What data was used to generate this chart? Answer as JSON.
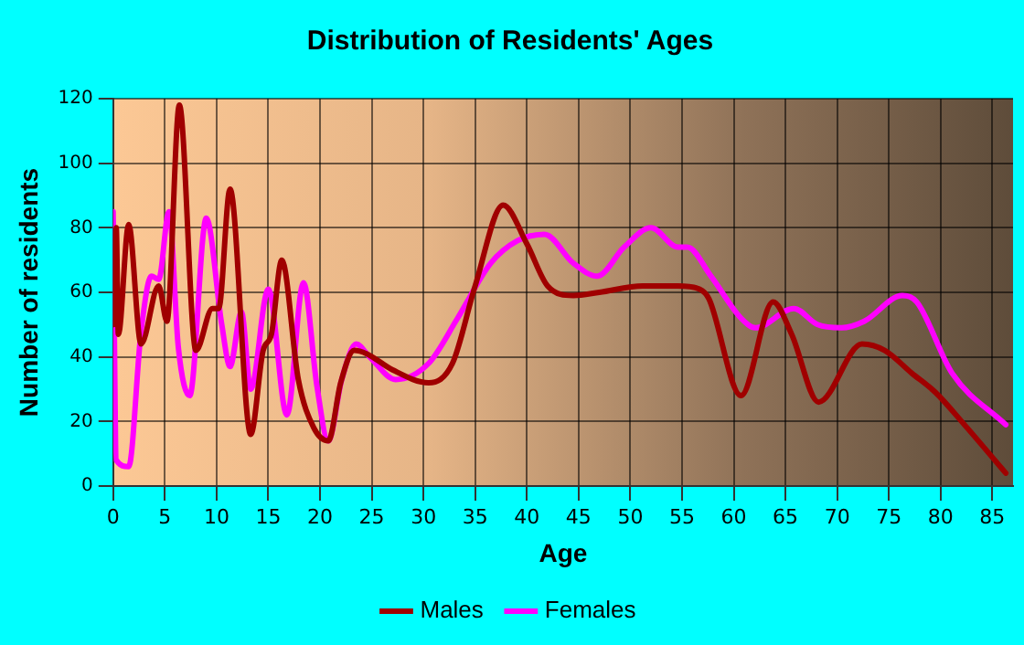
{
  "chart_data": {
    "type": "line",
    "title": "Distribution of Residents' Ages",
    "xlabel": "Age",
    "ylabel": "Number of residents",
    "xlim": [
      0,
      87
    ],
    "xticks": [
      0,
      5,
      10,
      15,
      20,
      25,
      30,
      35,
      40,
      45,
      50,
      55,
      60,
      65,
      70,
      75,
      80,
      85
    ],
    "ylim": [
      0,
      120
    ],
    "yticks": [
      0,
      20,
      40,
      60,
      80,
      100,
      120
    ],
    "grid": true,
    "legend": "bottom",
    "marker": "none",
    "line_style": "solid",
    "series": [
      {
        "name": "Males",
        "color": "#a00000",
        "x": [
          0,
          0.3,
          0.5,
          1.5,
          2.7,
          4.4,
          5.2,
          6.4,
          8,
          9.6,
          10.2,
          11.3,
          13.3,
          14.5,
          15.3,
          16.3,
          17.9,
          19.4,
          20.8,
          22,
          23.3,
          24.5,
          27,
          30.5,
          32.8,
          35,
          37.7,
          40,
          42,
          44.5,
          47,
          51.2,
          54.6,
          56.7,
          57.6,
          60.7,
          63.8,
          65.6,
          68.2,
          72.4,
          74.6,
          77.2,
          79.5,
          82.3,
          86.3
        ],
        "values": [
          50,
          80,
          47,
          81,
          44,
          62,
          51,
          118,
          42,
          55,
          55,
          92,
          16,
          42,
          47,
          70,
          33,
          18,
          14,
          32,
          42,
          41,
          36,
          32,
          38,
          62,
          87,
          75,
          62,
          59,
          60,
          62,
          62,
          61,
          58,
          28,
          57,
          47,
          26,
          44,
          42,
          35,
          29,
          19,
          4
        ]
      },
      {
        "name": "Females",
        "color": "#ff00ff",
        "x": [
          0,
          0.3,
          1.5,
          2.7,
          3.7,
          4.4,
          5.4,
          6.3,
          7.4,
          9,
          10.5,
          11.3,
          12.4,
          13.3,
          15,
          16.8,
          18.4,
          19.7,
          20.8,
          22.1,
          23.5,
          24.8,
          27.3,
          30.5,
          33.3,
          36.5,
          39.1,
          41.7,
          44.5,
          46.8,
          49.4,
          52,
          54.6,
          55.5,
          57.8,
          60.7,
          62.1,
          65.8,
          68.1,
          70.4,
          72.6,
          76.3,
          77.7,
          81.1,
          86.3
        ],
        "values": [
          85,
          8,
          6,
          48,
          65,
          64,
          85,
          43,
          28,
          83,
          50,
          37,
          54,
          30,
          61,
          22,
          63,
          31,
          14,
          33,
          44,
          40,
          33,
          38,
          52,
          69,
          76,
          78,
          69,
          65,
          74,
          80,
          74,
          74,
          65,
          52,
          49,
          55,
          50,
          49,
          51,
          59,
          57,
          35,
          19
        ]
      }
    ]
  }
}
